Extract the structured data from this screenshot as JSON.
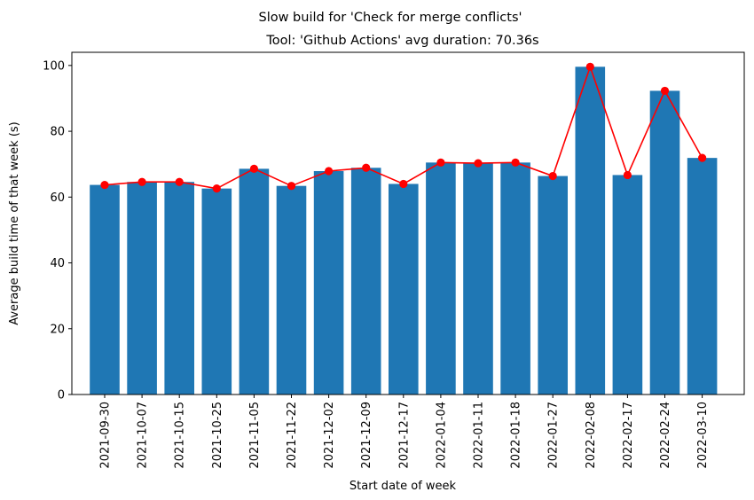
{
  "chart_data": {
    "type": "bar",
    "suptitle": "Slow build for 'Check for merge conflicts'",
    "title": "Tool: 'Github Actions' avg duration: 70.36s",
    "xlabel": "Start date of week",
    "ylabel": "Average build time of that week (s)",
    "ylim": [
      0,
      104
    ],
    "yticks": [
      0,
      20,
      40,
      60,
      80,
      100
    ],
    "categories": [
      "2021-09-30",
      "2021-10-07",
      "2021-10-15",
      "2021-10-25",
      "2021-11-05",
      "2021-11-22",
      "2021-12-02",
      "2021-12-09",
      "2021-12-17",
      "2022-01-04",
      "2022-01-11",
      "2022-01-18",
      "2022-01-27",
      "2022-02-08",
      "2022-02-17",
      "2022-02-24",
      "2022-03-10"
    ],
    "series": [
      {
        "kind": "bar",
        "color": "#1f77b4",
        "values": [
          63.7,
          64.6,
          64.6,
          62.6,
          68.6,
          63.4,
          67.9,
          68.9,
          64.0,
          70.5,
          70.3,
          70.5,
          66.4,
          99.6,
          66.7,
          92.3,
          71.9
        ]
      },
      {
        "kind": "line",
        "color": "#ff0000",
        "marker": "circle",
        "values": [
          63.7,
          64.6,
          64.6,
          62.6,
          68.6,
          63.4,
          67.9,
          68.9,
          64.0,
          70.5,
          70.3,
          70.5,
          66.4,
          99.6,
          66.7,
          92.3,
          71.9
        ]
      }
    ],
    "grid": false,
    "legend": "none"
  }
}
